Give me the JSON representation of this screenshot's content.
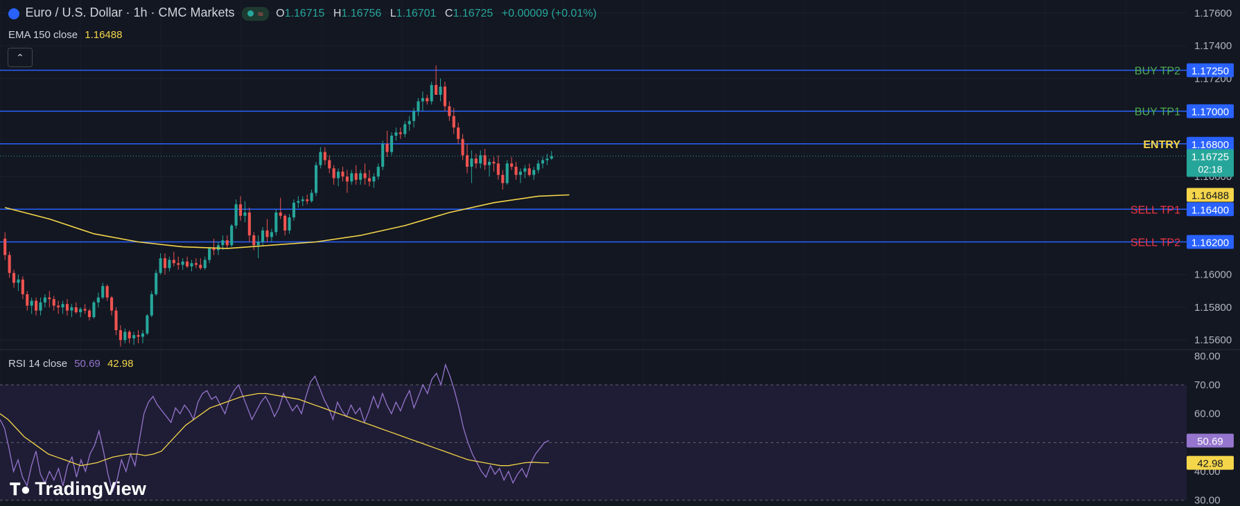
{
  "header": {
    "title": "Euro / U.S. Dollar · 1h · CMC Markets",
    "ohlc": [
      {
        "k": "O",
        "v": "1.16715"
      },
      {
        "k": "H",
        "v": "1.16756"
      },
      {
        "k": "L",
        "v": "1.16701"
      },
      {
        "k": "C",
        "v": "1.16725"
      }
    ],
    "change": "+0.00009 (+0.01%)",
    "ema_label": "EMA 150 close",
    "ema_value": "1.16488",
    "collapse_icon": "chevron-up-icon"
  },
  "rsi_legend": {
    "label": "RSI 14 close",
    "rsi": "50.69",
    "ma": "42.98"
  },
  "brand": "TradingView",
  "colors": {
    "background": "#131722",
    "up": "#26a69a",
    "down": "#ef5350",
    "level_line": "#2962ff",
    "ema": "#f5d64a",
    "rsi": "#9575cd",
    "rsi_ma": "#f5d64a",
    "buy_label": "#4caf50",
    "sell_label": "#f23645",
    "entry_label": "#f5d64a"
  },
  "chart_data": [
    {
      "type": "candlestick",
      "symbol": "EURUSD",
      "interval": "1h",
      "ylim": [
        1.1555,
        1.1768
      ],
      "yticks": [
        {
          "v": 1.176,
          "label": "1.17600"
        },
        {
          "v": 1.174,
          "label": "1.17400"
        },
        {
          "v": 1.172,
          "label": "1.17200"
        },
        {
          "v": 1.168,
          "label": "1.16800"
        },
        {
          "v": 1.166,
          "label": "1.16600"
        },
        {
          "v": 1.164,
          "label": "1.16400"
        },
        {
          "v": 1.162,
          "label": "1.16200"
        },
        {
          "v": 1.16,
          "label": "1.16000"
        },
        {
          "v": 1.158,
          "label": "1.15800"
        },
        {
          "v": 1.156,
          "label": "1.15600"
        }
      ],
      "levels": [
        {
          "name": "BUY TP2",
          "price": 1.1725,
          "label": "1.17250",
          "kind": "buy"
        },
        {
          "name": "BUY TP1",
          "price": 1.17,
          "label": "1.17000",
          "kind": "buy"
        },
        {
          "name": "ENTRY",
          "price": 1.168,
          "label": "1.16800",
          "kind": "entry"
        },
        {
          "name": "SELL TP1",
          "price": 1.164,
          "label": "1.16400",
          "kind": "sell"
        },
        {
          "name": "SELL TP2",
          "price": 1.162,
          "label": "1.16200",
          "kind": "sell"
        }
      ],
      "last_price": {
        "value": 1.16725,
        "label": "1.16725",
        "countdown": "02:18"
      },
      "ema": {
        "name": "EMA 150 close",
        "value_label": "1.16488",
        "value": 1.16488,
        "points": [
          [
            0,
            1.1641
          ],
          [
            10,
            1.1634
          ],
          [
            20,
            1.1625
          ],
          [
            30,
            1.162
          ],
          [
            40,
            1.1617
          ],
          [
            50,
            1.1616
          ],
          [
            60,
            1.1618
          ],
          [
            70,
            1.162
          ],
          [
            80,
            1.1624
          ],
          [
            90,
            1.163
          ],
          [
            100,
            1.1638
          ],
          [
            110,
            1.1644
          ],
          [
            120,
            1.1648
          ],
          [
            127,
            1.16488
          ]
        ]
      },
      "candles": [
        [
          1.1622,
          1.1626,
          1.1609,
          1.1612
        ],
        [
          1.1612,
          1.1614,
          1.1598,
          1.1601
        ],
        [
          1.1601,
          1.1603,
          1.1592,
          1.1595
        ],
        [
          1.1595,
          1.16,
          1.159,
          1.1597
        ],
        [
          1.1597,
          1.1599,
          1.1585,
          1.1588
        ],
        [
          1.1588,
          1.159,
          1.1578,
          1.1581
        ],
        [
          1.1581,
          1.1586,
          1.1576,
          1.1584
        ],
        [
          1.1584,
          1.1586,
          1.1575,
          1.1578
        ],
        [
          1.1578,
          1.1586,
          1.1575,
          1.1583
        ],
        [
          1.1583,
          1.1588,
          1.158,
          1.1586
        ],
        [
          1.1586,
          1.159,
          1.158,
          1.1585
        ],
        [
          1.1585,
          1.1587,
          1.1578,
          1.1581
        ],
        [
          1.1581,
          1.1584,
          1.1576,
          1.158
        ],
        [
          1.158,
          1.1584,
          1.1576,
          1.1582
        ],
        [
          1.1582,
          1.1585,
          1.1575,
          1.1578
        ],
        [
          1.1578,
          1.1582,
          1.1574,
          1.158
        ],
        [
          1.158,
          1.1583,
          1.1576,
          1.1577
        ],
        [
          1.1577,
          1.158,
          1.1574,
          1.1579
        ],
        [
          1.1579,
          1.1582,
          1.1576,
          1.1578
        ],
        [
          1.1578,
          1.1579,
          1.1572,
          1.1574
        ],
        [
          1.1574,
          1.1584,
          1.1573,
          1.1583
        ],
        [
          1.1583,
          1.1589,
          1.158,
          1.1586
        ],
        [
          1.1586,
          1.1595,
          1.1585,
          1.1593
        ],
        [
          1.1593,
          1.1594,
          1.1584,
          1.1586
        ],
        [
          1.1586,
          1.1587,
          1.1575,
          1.1578
        ],
        [
          1.1578,
          1.158,
          1.1563,
          1.1566
        ],
        [
          1.1566,
          1.1569,
          1.1556,
          1.156
        ],
        [
          1.156,
          1.1567,
          1.1558,
          1.1565
        ],
        [
          1.1565,
          1.1566,
          1.1558,
          1.1561
        ],
        [
          1.1561,
          1.1565,
          1.1557,
          1.1563
        ],
        [
          1.1563,
          1.1566,
          1.1558,
          1.1562
        ],
        [
          1.1562,
          1.1566,
          1.1558,
          1.1564
        ],
        [
          1.1564,
          1.1576,
          1.1563,
          1.1575
        ],
        [
          1.1575,
          1.159,
          1.1574,
          1.1588
        ],
        [
          1.1588,
          1.1603,
          1.1587,
          1.1601
        ],
        [
          1.1601,
          1.1613,
          1.16,
          1.161
        ],
        [
          1.161,
          1.1613,
          1.16,
          1.1604
        ],
        [
          1.1604,
          1.1611,
          1.1602,
          1.1609
        ],
        [
          1.1609,
          1.1614,
          1.1605,
          1.1607
        ],
        [
          1.1607,
          1.1611,
          1.1603,
          1.1606
        ],
        [
          1.1606,
          1.161,
          1.1603,
          1.1608
        ],
        [
          1.1608,
          1.1611,
          1.1604,
          1.1605
        ],
        [
          1.1605,
          1.1609,
          1.1602,
          1.1607
        ],
        [
          1.1607,
          1.161,
          1.1604,
          1.1606
        ],
        [
          1.1606,
          1.161,
          1.1603,
          1.1604
        ],
        [
          1.1604,
          1.1611,
          1.1603,
          1.1609
        ],
        [
          1.1609,
          1.1617,
          1.1607,
          1.1616
        ],
        [
          1.1616,
          1.1622,
          1.1612,
          1.1615
        ],
        [
          1.1615,
          1.162,
          1.1612,
          1.1618
        ],
        [
          1.1618,
          1.1624,
          1.1615,
          1.1621
        ],
        [
          1.1621,
          1.1624,
          1.1616,
          1.1618
        ],
        [
          1.1618,
          1.1631,
          1.1617,
          1.163
        ],
        [
          1.163,
          1.1646,
          1.1628,
          1.1643
        ],
        [
          1.1643,
          1.1648,
          1.1633,
          1.1636
        ],
        [
          1.1636,
          1.1645,
          1.1632,
          1.1638
        ],
        [
          1.1638,
          1.1641,
          1.162,
          1.1624
        ],
        [
          1.1624,
          1.1626,
          1.1615,
          1.1618
        ],
        [
          1.1618,
          1.1624,
          1.161,
          1.162
        ],
        [
          1.162,
          1.1629,
          1.1618,
          1.1627
        ],
        [
          1.1627,
          1.1634,
          1.162,
          1.1623
        ],
        [
          1.1623,
          1.1628,
          1.162,
          1.1626
        ],
        [
          1.1626,
          1.164,
          1.1624,
          1.1638
        ],
        [
          1.1638,
          1.1647,
          1.1634,
          1.1636
        ],
        [
          1.1636,
          1.1637,
          1.1624,
          1.1627
        ],
        [
          1.1627,
          1.1637,
          1.1625,
          1.1635
        ],
        [
          1.1635,
          1.1646,
          1.1633,
          1.1644
        ],
        [
          1.1644,
          1.1648,
          1.1641,
          1.1645
        ],
        [
          1.1645,
          1.1648,
          1.1642,
          1.1646
        ],
        [
          1.1646,
          1.1649,
          1.1643,
          1.1645
        ],
        [
          1.1645,
          1.1652,
          1.1644,
          1.165
        ],
        [
          1.165,
          1.1669,
          1.1648,
          1.1667
        ],
        [
          1.1667,
          1.1678,
          1.1665,
          1.1675
        ],
        [
          1.1675,
          1.1678,
          1.1667,
          1.167
        ],
        [
          1.167,
          1.1673,
          1.1662,
          1.1665
        ],
        [
          1.1665,
          1.1667,
          1.1655,
          1.1659
        ],
        [
          1.1659,
          1.1665,
          1.1654,
          1.1663
        ],
        [
          1.1663,
          1.1666,
          1.1657,
          1.166
        ],
        [
          1.166,
          1.1664,
          1.165,
          1.1657
        ],
        [
          1.1657,
          1.1664,
          1.1655,
          1.1662
        ],
        [
          1.1662,
          1.1667,
          1.1655,
          1.1658
        ],
        [
          1.1658,
          1.1664,
          1.1655,
          1.1662
        ],
        [
          1.1662,
          1.1668,
          1.1655,
          1.1659
        ],
        [
          1.1659,
          1.1664,
          1.1654,
          1.1657
        ],
        [
          1.1657,
          1.1662,
          1.1653,
          1.166
        ],
        [
          1.166,
          1.1668,
          1.1658,
          1.1666
        ],
        [
          1.1666,
          1.1682,
          1.1664,
          1.168
        ],
        [
          1.168,
          1.1688,
          1.1672,
          1.1675
        ],
        [
          1.1675,
          1.1687,
          1.1673,
          1.1685
        ],
        [
          1.1685,
          1.169,
          1.1682,
          1.1687
        ],
        [
          1.1687,
          1.169,
          1.1683,
          1.1686
        ],
        [
          1.1686,
          1.1694,
          1.1684,
          1.1692
        ],
        [
          1.1692,
          1.1697,
          1.1688,
          1.1694
        ],
        [
          1.1694,
          1.1702,
          1.169,
          1.17
        ],
        [
          1.17,
          1.1708,
          1.1697,
          1.1706
        ],
        [
          1.1706,
          1.1712,
          1.17,
          1.1708
        ],
        [
          1.1708,
          1.171,
          1.1704,
          1.1706
        ],
        [
          1.1706,
          1.1718,
          1.1704,
          1.1716
        ],
        [
          1.1716,
          1.1728,
          1.1712,
          1.171
        ],
        [
          1.171,
          1.172,
          1.1706,
          1.1715
        ],
        [
          1.1715,
          1.1718,
          1.17,
          1.1703
        ],
        [
          1.1703,
          1.1706,
          1.1694,
          1.1697
        ],
        [
          1.1697,
          1.1702,
          1.1686,
          1.169
        ],
        [
          1.169,
          1.1693,
          1.168,
          1.1683
        ],
        [
          1.1683,
          1.1686,
          1.167,
          1.1673
        ],
        [
          1.1673,
          1.168,
          1.1662,
          1.1666
        ],
        [
          1.1666,
          1.1676,
          1.1656,
          1.1671
        ],
        [
          1.1671,
          1.1674,
          1.1665,
          1.1668
        ],
        [
          1.1668,
          1.1676,
          1.1665,
          1.1673
        ],
        [
          1.1673,
          1.1677,
          1.1664,
          1.1667
        ],
        [
          1.1667,
          1.1671,
          1.166,
          1.1669
        ],
        [
          1.1669,
          1.1672,
          1.1663,
          1.1668
        ],
        [
          1.1668,
          1.1673,
          1.1658,
          1.1661
        ],
        [
          1.1661,
          1.1664,
          1.1652,
          1.1656
        ],
        [
          1.1656,
          1.167,
          1.1655,
          1.1668
        ],
        [
          1.1668,
          1.1672,
          1.1664,
          1.1666
        ],
        [
          1.1666,
          1.1669,
          1.1658,
          1.1661
        ],
        [
          1.1661,
          1.1665,
          1.1656,
          1.1663
        ],
        [
          1.1663,
          1.1667,
          1.1659,
          1.1665
        ],
        [
          1.1665,
          1.1668,
          1.166,
          1.1661
        ],
        [
          1.1661,
          1.1666,
          1.1658,
          1.1664
        ],
        [
          1.1664,
          1.167,
          1.1662,
          1.1668
        ],
        [
          1.1668,
          1.1672,
          1.1665,
          1.167
        ],
        [
          1.167,
          1.1674,
          1.1667,
          1.1671
        ],
        [
          1.1671,
          1.16756,
          1.16701,
          1.16725
        ]
      ]
    },
    {
      "type": "line",
      "name": "RSI 14 close",
      "ylim": [
        28,
        82
      ],
      "yticks": [
        {
          "v": 80,
          "label": "80.00"
        },
        {
          "v": 70,
          "label": "70.00"
        },
        {
          "v": 60,
          "label": "60.00"
        },
        {
          "v": 50,
          "label": "50.00"
        },
        {
          "v": 40,
          "label": "40.00"
        },
        {
          "v": 30,
          "label": "30.00"
        }
      ],
      "band": [
        30,
        70
      ],
      "midline": 50,
      "series": [
        {
          "name": "RSI",
          "last_label": "50.69",
          "values": [
            58,
            55,
            48,
            40,
            44,
            38,
            35,
            42,
            47,
            39,
            36,
            40,
            37,
            41,
            35,
            42,
            45,
            38,
            44,
            40,
            46,
            49,
            54,
            47,
            39,
            33,
            37,
            44,
            40,
            46,
            42,
            51,
            60,
            64,
            66,
            63,
            61,
            59,
            57,
            62,
            60,
            63,
            61,
            58,
            64,
            67,
            68,
            65,
            66,
            63,
            60,
            65,
            68,
            70,
            66,
            62,
            58,
            61,
            64,
            66,
            63,
            59,
            62,
            67,
            64,
            61,
            63,
            60,
            66,
            71,
            73,
            69,
            65,
            62,
            58,
            64,
            61,
            59,
            63,
            60,
            62,
            57,
            61,
            66,
            62,
            67,
            63,
            60,
            64,
            61,
            65,
            68,
            62,
            66,
            70,
            67,
            72,
            74,
            70,
            77,
            73,
            68,
            62,
            55,
            50,
            46,
            43,
            40,
            38,
            42,
            39,
            41,
            37,
            40,
            36,
            39,
            41,
            38,
            43,
            46,
            48,
            50,
            50.69
          ]
        },
        {
          "name": "RSI-based MA",
          "last_label": "42.98",
          "values": [
            60,
            58,
            55,
            52,
            50,
            48,
            46,
            45,
            44,
            43,
            42,
            42.5,
            43,
            44,
            45,
            45.5,
            46,
            46,
            45.5,
            46,
            47,
            50,
            53,
            56,
            58,
            60,
            62,
            63,
            64,
            65,
            66,
            66.5,
            67,
            67,
            66.5,
            66,
            65.5,
            65,
            64,
            63,
            62,
            61,
            60,
            59,
            58,
            57,
            56,
            55,
            54,
            53,
            52,
            51,
            50,
            49,
            48,
            47,
            46,
            45,
            44,
            43.5,
            43,
            42.5,
            42,
            42,
            42.5,
            43,
            43.2,
            43,
            42.98
          ]
        }
      ]
    }
  ]
}
